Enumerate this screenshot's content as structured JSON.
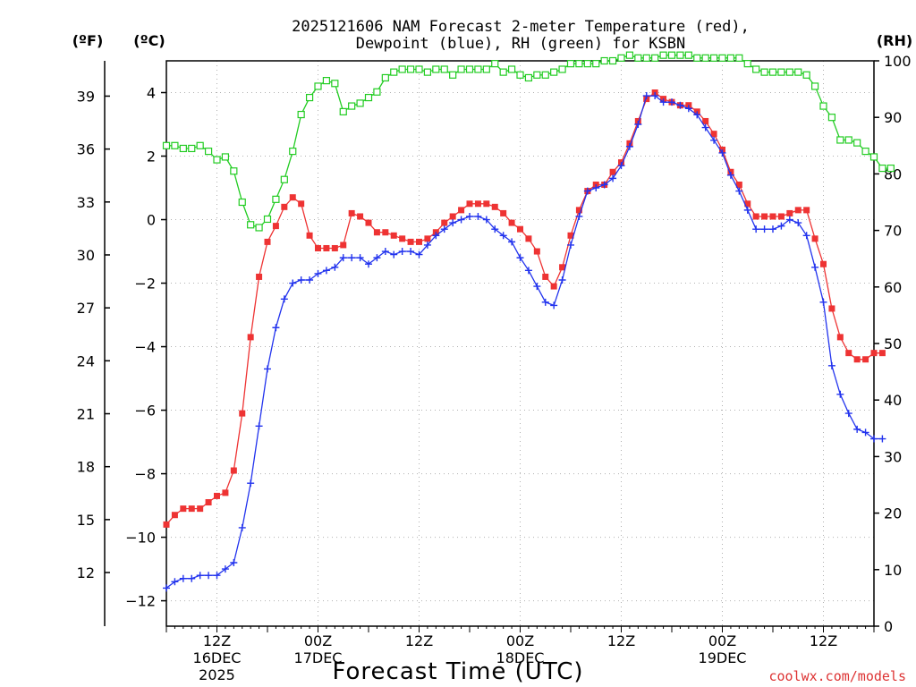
{
  "chart_data": {
    "type": "line",
    "title_line1": "2025121606 NAM Forecast 2-meter Temperature (red),",
    "title_line2": "Dewpoint (blue), RH (green) for KSBN",
    "xlabel": "Forecast Time (UTC)",
    "credit": "coolwx.com/models",
    "colors": {
      "temperature": "#ee3333",
      "dewpoint": "#2233ee",
      "rh": "#22cc22",
      "credit": "#dd3333"
    },
    "axes": {
      "y_celsius": {
        "label": "(ºC)",
        "range": [
          -12.8,
          5.0
        ],
        "ticks": [
          "-12",
          "-10",
          "-8",
          "-6",
          "-4",
          "-2",
          "0",
          "2",
          "4"
        ]
      },
      "y_fahrenheit": {
        "label": "(ºF)",
        "ticks": [
          "12",
          "15",
          "18",
          "21",
          "24",
          "27",
          "30",
          "33",
          "36",
          "39"
        ]
      },
      "y_rh": {
        "label": "(RH)",
        "range": [
          0,
          100
        ],
        "ticks": [
          "0",
          "10",
          "20",
          "30",
          "40",
          "50",
          "60",
          "70",
          "80",
          "90",
          "100"
        ]
      },
      "x_hours": {
        "range": [
          6,
          90
        ],
        "unit": "hours after 2025-12-16 00Z"
      }
    },
    "x_ticks": [
      {
        "hour": 12,
        "lines": [
          "12Z",
          "16DEC",
          "2025"
        ]
      },
      {
        "hour": 24,
        "lines": [
          "00Z",
          "17DEC"
        ]
      },
      {
        "hour": 36,
        "lines": [
          "12Z"
        ]
      },
      {
        "hour": 48,
        "lines": [
          "00Z",
          "18DEC"
        ]
      },
      {
        "hour": 60,
        "lines": [
          "12Z"
        ]
      },
      {
        "hour": 72,
        "lines": [
          "00Z",
          "19DEC"
        ]
      },
      {
        "hour": 84,
        "lines": [
          "12Z"
        ]
      }
    ],
    "grid": true,
    "series": [
      {
        "name": "Temperature",
        "unit": "C",
        "start_hour": 6,
        "step_hours": 1,
        "values": [
          -9.6,
          -9.3,
          -9.1,
          -9.1,
          -9.1,
          -8.9,
          -8.7,
          -8.6,
          -7.9,
          -6.1,
          -3.7,
          -1.8,
          -0.7,
          -0.2,
          0.4,
          0.7,
          0.5,
          -0.5,
          -0.9,
          -0.9,
          -0.9,
          -0.8,
          0.2,
          0.1,
          -0.1,
          -0.4,
          -0.4,
          -0.5,
          -0.6,
          -0.7,
          -0.7,
          -0.6,
          -0.4,
          -0.1,
          0.1,
          0.3,
          0.5,
          0.5,
          0.5,
          0.4,
          0.2,
          -0.1,
          -0.3,
          -0.6,
          -1.0,
          -1.8,
          -2.1,
          -1.5,
          -0.5,
          0.3,
          0.9,
          1.1,
          1.1,
          1.5,
          1.8,
          2.4,
          3.1,
          3.8,
          4.0,
          3.8,
          3.7,
          3.6,
          3.6,
          3.4,
          3.1,
          2.7,
          2.2,
          1.5,
          1.1,
          0.5,
          0.1,
          0.1,
          0.1,
          0.1,
          0.2,
          0.3,
          0.3,
          -0.6,
          -1.4,
          -2.8,
          -3.7,
          -4.2,
          -4.4,
          -4.4,
          -4.2,
          -4.2
        ]
      },
      {
        "name": "Dewpoint",
        "unit": "C",
        "start_hour": 6,
        "step_hours": 1,
        "values": [
          -11.6,
          -11.4,
          -11.3,
          -11.3,
          -11.2,
          -11.2,
          -11.2,
          -11.0,
          -10.8,
          -9.7,
          -8.3,
          -6.5,
          -4.7,
          -3.4,
          -2.5,
          -2.0,
          -1.9,
          -1.9,
          -1.7,
          -1.6,
          -1.5,
          -1.2,
          -1.2,
          -1.2,
          -1.4,
          -1.2,
          -1.0,
          -1.1,
          -1.0,
          -1.0,
          -1.1,
          -0.8,
          -0.5,
          -0.3,
          -0.1,
          0.0,
          0.1,
          0.1,
          0.0,
          -0.3,
          -0.5,
          -0.7,
          -1.2,
          -1.6,
          -2.1,
          -2.6,
          -2.7,
          -1.9,
          -0.8,
          0.1,
          0.9,
          1.0,
          1.1,
          1.3,
          1.7,
          2.3,
          3.0,
          3.9,
          3.9,
          3.7,
          3.7,
          3.6,
          3.5,
          3.3,
          2.9,
          2.5,
          2.1,
          1.4,
          0.9,
          0.3,
          -0.3,
          -0.3,
          -0.3,
          -0.2,
          0.0,
          -0.1,
          -0.5,
          -1.5,
          -2.6,
          -4.6,
          -5.5,
          -6.1,
          -6.6,
          -6.7,
          -6.9,
          -6.9
        ]
      },
      {
        "name": "RH",
        "unit": "%",
        "start_hour": 6,
        "step_hours": 1,
        "values": [
          85,
          85,
          84.5,
          84.5,
          85,
          84,
          82.5,
          83,
          80.5,
          75,
          71,
          70.5,
          72,
          75.5,
          79,
          84,
          90.5,
          93.5,
          95.5,
          96.5,
          96,
          91,
          92,
          92.5,
          93.5,
          94.5,
          97,
          98,
          98.5,
          98.5,
          98.5,
          98,
          98.5,
          98.5,
          97.5,
          98.5,
          98.5,
          98.5,
          98.5,
          99.5,
          98,
          98.5,
          97.5,
          97,
          97.5,
          97.5,
          98,
          98.5,
          99.5,
          99.5,
          99.5,
          99.5,
          100,
          100,
          100.5,
          101,
          100.5,
          100.5,
          100.5,
          101,
          101,
          101,
          101,
          100.5,
          100.5,
          100.5,
          100.5,
          100.5,
          100.5,
          99.5,
          98.5,
          98,
          98,
          98,
          98,
          98,
          97.5,
          95.5,
          92,
          90,
          86,
          86,
          85.5,
          84,
          83,
          81,
          81
        ]
      }
    ]
  }
}
